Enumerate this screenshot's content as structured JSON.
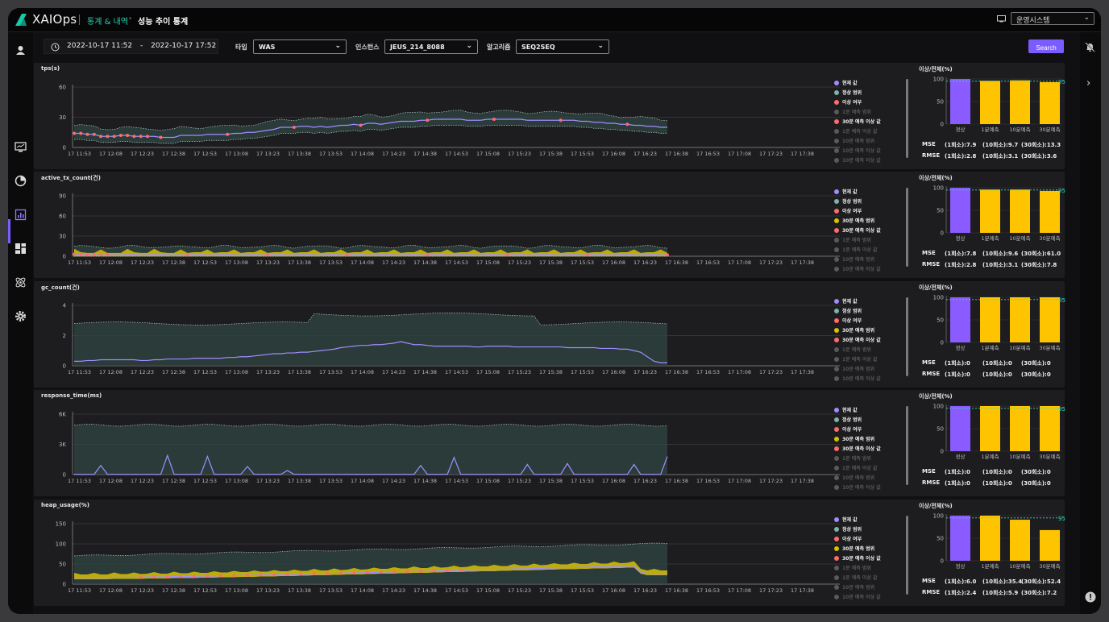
{
  "app": {
    "name": "XAIOps",
    "breadcrumb": [
      "통계 & 내역",
      "성능 추이 통계"
    ],
    "system_select": "운영시스템"
  },
  "filters": {
    "date_from": "2022-10-17 11:52",
    "date_sep": "-",
    "date_to": "2022-10-17 17:52",
    "type_label": "타입",
    "type_value": "WAS",
    "instance_label": "인스턴스",
    "instance_value": "JEUS_214_8088",
    "algorithm_label": "알고리즘",
    "algorithm_value": "SEQ2SEQ",
    "search_label": "Search"
  },
  "colors": {
    "accent": "#7b5cff",
    "current": "#a18cff",
    "normal_range": "#2f4543",
    "anomaly": "#ff6b6b",
    "forecast30": "#d7c200",
    "muted": "#5a5a5a",
    "bar_normal": "#8a5cff",
    "bar_forecast": "#ffc400",
    "threshold": "#3ad9c0"
  },
  "time_labels": [
    "17 11:53",
    "17 12:08",
    "17 12:23",
    "17 12:38",
    "17 12:53",
    "17 13:08",
    "17 13:23",
    "17 13:38",
    "17 13:53",
    "17 14:08",
    "17 14:23",
    "17 14:38",
    "17 14:53",
    "17 15:08",
    "17 15:23",
    "17 15:38",
    "17 15:53",
    "17 16:08",
    "17 16:23",
    "17 16:38",
    "17 16:53",
    "17 17:08",
    "17 17:23",
    "17 17:38"
  ],
  "bar_categories": [
    "정상",
    "1분예측",
    "10분예측",
    "30분예측"
  ],
  "metric_labels": {
    "mse": "MSE",
    "rmse": "RMSE"
  },
  "panels": [
    {
      "title": "tps(s)",
      "y_ticks": [
        "0",
        "30",
        "60"
      ],
      "ylim": [
        0,
        60
      ],
      "legend": [
        {
          "label": "현재 값",
          "color": "#a18cff",
          "active": true
        },
        {
          "label": "정상 범위",
          "color": "#7fb3a8",
          "active": true
        },
        {
          "label": "이상 여부",
          "color": "#ff6b6b",
          "active": true
        },
        {
          "label": "1분 예측 범위",
          "color": "#5a5a5a",
          "active": false
        },
        {
          "label": "30분 예측 이상 값",
          "color": "#ff6b6b",
          "active": true
        },
        {
          "label": "1분 예측 이상 값",
          "color": "#5a5a5a",
          "active": false
        },
        {
          "label": "10분 예측 범위",
          "color": "#5a5a5a",
          "active": false
        },
        {
          "label": "10분 예측 이상 값",
          "color": "#5a5a5a",
          "active": false
        },
        {
          "label": "10분 예측 이상 값",
          "color": "#5a5a5a",
          "active": false
        }
      ],
      "bar_title": "이상/전체(%)",
      "bar_values": [
        100,
        96,
        97,
        93
      ],
      "threshold": 95,
      "threshold_label": "95",
      "bar_ticks": [
        "0",
        "50",
        "100"
      ],
      "mse": [
        "(1회소):7.9",
        "(10회소):9.7",
        "(30회소):13.3"
      ],
      "rmse": [
        "(1회소):2.8",
        "(10회소):3.1",
        "(30회소):3.6"
      ],
      "chart_data": {
        "type": "line",
        "series_current": [
          14,
          14,
          13,
          13,
          11,
          11,
          11,
          12,
          12,
          11,
          11,
          11,
          11,
          10,
          10,
          10,
          12,
          12,
          12,
          12,
          13,
          13,
          13,
          13,
          14,
          14,
          15,
          15,
          16,
          17,
          18,
          20,
          20,
          20,
          21,
          21,
          20,
          21,
          20,
          21,
          22,
          22,
          23,
          22,
          24,
          24,
          23,
          24,
          25,
          26,
          26,
          26,
          27,
          27,
          28,
          28,
          28,
          28,
          28,
          27,
          27,
          27,
          28,
          28,
          28,
          28,
          28,
          28,
          27,
          27,
          27,
          27,
          27,
          27,
          27,
          27,
          26,
          26,
          25,
          25,
          24,
          24,
          23,
          23,
          22,
          22,
          21,
          21,
          20,
          20
        ]
      }
    },
    {
      "title": "active_tx_count(건)",
      "y_ticks": [
        "0",
        "30",
        "60",
        "90"
      ],
      "ylim": [
        0,
        90
      ],
      "legend": [
        {
          "label": "현재 값",
          "color": "#a18cff",
          "active": true
        },
        {
          "label": "정상 범위",
          "color": "#7fb3a8",
          "active": true
        },
        {
          "label": "이상 여부",
          "color": "#ff6b6b",
          "active": true
        },
        {
          "label": "30분 예측 범위",
          "color": "#d7c200",
          "active": true
        },
        {
          "label": "30분 예측 이상 값",
          "color": "#ff6b6b",
          "active": true
        },
        {
          "label": "1분 예측 범위",
          "color": "#5a5a5a",
          "active": false
        },
        {
          "label": "1분 예측 이상 값",
          "color": "#5a5a5a",
          "active": false
        },
        {
          "label": "10분 예측 범위",
          "color": "#5a5a5a",
          "active": false
        },
        {
          "label": "10분 예측 이상 값",
          "color": "#5a5a5a",
          "active": false
        }
      ],
      "bar_title": "이상/전체(%)",
      "bar_values": [
        100,
        96,
        96,
        93
      ],
      "threshold": 95,
      "threshold_label": "95",
      "bar_ticks": [
        "0",
        "50",
        "100"
      ],
      "mse": [
        "(1회소):7.8",
        "(10회소):9.6",
        "(30회소):61.0"
      ],
      "rmse": [
        "(1회소):2.8",
        "(10회소):3.1",
        "(30회소):7.8"
      ],
      "chart_data": {
        "type": "line",
        "series_current": [
          3,
          3,
          2,
          2,
          2,
          2,
          2,
          2,
          3,
          3,
          2,
          2,
          3,
          3,
          2,
          2,
          2,
          2,
          3,
          3,
          2,
          2,
          3,
          3,
          2,
          2,
          3,
          3,
          2,
          2,
          3,
          3,
          2,
          2,
          3,
          3,
          2,
          2,
          3,
          3,
          2,
          2,
          3,
          3,
          2,
          2,
          3,
          3,
          2,
          2,
          3,
          3,
          2,
          2,
          3,
          3,
          2,
          2,
          3,
          3,
          2,
          2,
          3,
          3,
          2,
          2,
          3,
          3,
          2,
          2,
          3,
          3,
          2,
          2,
          3,
          3,
          2,
          2,
          3,
          3,
          2,
          2,
          3,
          3,
          2,
          2,
          3,
          3,
          2,
          2
        ]
      }
    },
    {
      "title": "gc_count(건)",
      "y_ticks": [
        "0",
        "2",
        "4"
      ],
      "ylim": [
        0,
        4
      ],
      "legend": [
        {
          "label": "현재 값",
          "color": "#a18cff",
          "active": true
        },
        {
          "label": "정상 범위",
          "color": "#7fb3a8",
          "active": true
        },
        {
          "label": "이상 여부",
          "color": "#ff6b6b",
          "active": true
        },
        {
          "label": "30분 예측 범위",
          "color": "#d7c200",
          "active": true
        },
        {
          "label": "30분 예측 이상 값",
          "color": "#ff6b6b",
          "active": true
        },
        {
          "label": "1분 예측 범위",
          "color": "#5a5a5a",
          "active": false
        },
        {
          "label": "1분 예측 이상 값",
          "color": "#5a5a5a",
          "active": false
        },
        {
          "label": "10분 예측 범위",
          "color": "#5a5a5a",
          "active": false
        },
        {
          "label": "10분 예측 이상 값",
          "color": "#5a5a5a",
          "active": false
        }
      ],
      "bar_title": "이상/전체(%)",
      "bar_values": [
        100,
        100,
        100,
        100
      ],
      "threshold": 95,
      "threshold_label": "95",
      "bar_ticks": [
        "0",
        "50",
        "100"
      ],
      "mse": [
        "(1회소):0",
        "(10회소):0",
        "(30회소):0"
      ],
      "rmse": [
        "(1회소):0",
        "(10회소):0",
        "(30회소):0"
      ],
      "chart_data": {
        "type": "line",
        "series_current": [
          0.3,
          0.3,
          0.35,
          0.35,
          0.4,
          0.4,
          0.4,
          0.4,
          0.4,
          0.4,
          0.35,
          0.35,
          0.4,
          0.4,
          0.45,
          0.45,
          0.45,
          0.45,
          0.5,
          0.5,
          0.5,
          0.5,
          0.5,
          0.55,
          0.55,
          0.6,
          0.6,
          0.65,
          0.7,
          0.75,
          0.8,
          0.8,
          0.85,
          0.85,
          0.9,
          0.9,
          0.95,
          1.0,
          1.05,
          1.1,
          1.2,
          1.25,
          1.3,
          1.35,
          1.35,
          1.4,
          1.4,
          1.45,
          1.5,
          1.6,
          1.5,
          1.4,
          1.4,
          1.35,
          1.3,
          1.3,
          1.3,
          1.3,
          1.3,
          1.3,
          1.25,
          1.25,
          1.3,
          1.3,
          1.3,
          1.3,
          1.25,
          1.25,
          1.25,
          1.25,
          1.25,
          1.25,
          1.25,
          1.25,
          1.2,
          1.2,
          1.2,
          1.2,
          1.2,
          1.15,
          1.15,
          1.15,
          1.1,
          1.1,
          1.0,
          0.9,
          0.6,
          0.3,
          0.2,
          0.2
        ]
      }
    },
    {
      "title": "response_time(ms)",
      "y_ticks": [
        "0",
        "3K",
        "6K"
      ],
      "ylim": [
        0,
        6000
      ],
      "legend": [
        {
          "label": "현재 값",
          "color": "#a18cff",
          "active": true
        },
        {
          "label": "정상 범위",
          "color": "#7fb3a8",
          "active": true
        },
        {
          "label": "이상 여부",
          "color": "#ff6b6b",
          "active": true
        },
        {
          "label": "30분 예측 범위",
          "color": "#d7c200",
          "active": true
        },
        {
          "label": "30분 예측 이상 값",
          "color": "#ff6b6b",
          "active": true
        },
        {
          "label": "1분 예측 범위",
          "color": "#5a5a5a",
          "active": false
        },
        {
          "label": "1분 예측 이상 값",
          "color": "#5a5a5a",
          "active": false
        },
        {
          "label": "10분 예측 범위",
          "color": "#5a5a5a",
          "active": false
        },
        {
          "label": "10분 예측 이상 값",
          "color": "#5a5a5a",
          "active": false
        }
      ],
      "bar_title": "이상/전체(%)",
      "bar_values": [
        100,
        100,
        100,
        100
      ],
      "threshold": 95,
      "threshold_label": "95",
      "bar_ticks": [
        "0",
        "50",
        "100"
      ],
      "mse": [
        "(1회소):0",
        "(10회소):0",
        "(30회소):0"
      ],
      "rmse": [
        "(1회소):0",
        "(10회소):0",
        "(30회소):0"
      ],
      "chart_data": {
        "type": "line",
        "series_current": [
          20,
          20,
          20,
          20,
          900,
          20,
          20,
          20,
          20,
          20,
          20,
          20,
          20,
          20,
          1900,
          20,
          20,
          20,
          20,
          20,
          1800,
          20,
          20,
          20,
          20,
          20,
          800,
          20,
          20,
          20,
          20,
          20,
          400,
          20,
          20,
          20,
          20,
          20,
          20,
          20,
          20,
          20,
          20,
          20,
          20,
          20,
          20,
          20,
          20,
          20,
          20,
          20,
          900,
          20,
          20,
          20,
          20,
          1700,
          20,
          20,
          20,
          20,
          20,
          20,
          20,
          20,
          20,
          20,
          1000,
          20,
          20,
          20,
          20,
          20,
          1100,
          20,
          20,
          20,
          20,
          20,
          20,
          20,
          20,
          20,
          1000,
          20,
          20,
          20,
          20,
          1800
        ]
      }
    },
    {
      "title": "heap_usage(%)",
      "y_ticks": [
        "0",
        "50",
        "100",
        "150"
      ],
      "ylim": [
        0,
        150
      ],
      "legend": [
        {
          "label": "현재 값",
          "color": "#a18cff",
          "active": true
        },
        {
          "label": "정상 범위",
          "color": "#7fb3a8",
          "active": true
        },
        {
          "label": "이상 여부",
          "color": "#ff6b6b",
          "active": true
        },
        {
          "label": "30분 예측 범위",
          "color": "#d7c200",
          "active": true
        },
        {
          "label": "30분 예측 이상 값",
          "color": "#ff6b6b",
          "active": true
        },
        {
          "label": "1분 예측 범위",
          "color": "#5a5a5a",
          "active": false
        },
        {
          "label": "1분 예측 이상 값",
          "color": "#5a5a5a",
          "active": false
        },
        {
          "label": "10분 예측 범위",
          "color": "#5a5a5a",
          "active": false
        },
        {
          "label": "10분 예측 이상 값",
          "color": "#5a5a5a",
          "active": false
        }
      ],
      "bar_title": "이상/전체(%)",
      "bar_values": [
        100,
        100,
        91,
        68
      ],
      "threshold": 95,
      "threshold_label": "95",
      "bar_ticks": [
        "0",
        "50",
        "100"
      ],
      "mse": [
        "(1회소):6.0",
        "(10회소):35.4",
        "(30회소):52.4"
      ],
      "rmse": [
        "(1회소):2.4",
        "(10회소):5.9",
        "(30회소):7.2"
      ],
      "chart_data": {
        "type": "line",
        "series_current": [
          16,
          16,
          16,
          16,
          16,
          16,
          17,
          17,
          17,
          17,
          17,
          18,
          18,
          18,
          18,
          19,
          19,
          19,
          19,
          20,
          20,
          20,
          21,
          21,
          21,
          22,
          22,
          22,
          23,
          23,
          23,
          24,
          24,
          24,
          25,
          25,
          26,
          26,
          26,
          27,
          27,
          28,
          28,
          28,
          29,
          29,
          30,
          30,
          30,
          31,
          31,
          32,
          32,
          32,
          33,
          33,
          34,
          34,
          34,
          35,
          35,
          36,
          36,
          36,
          37,
          37,
          38,
          38,
          38,
          39,
          39,
          40,
          40,
          41,
          41,
          41,
          42,
          42,
          43,
          43,
          43,
          44,
          44,
          45,
          45,
          30,
          26,
          26,
          26,
          26
        ]
      }
    }
  ]
}
